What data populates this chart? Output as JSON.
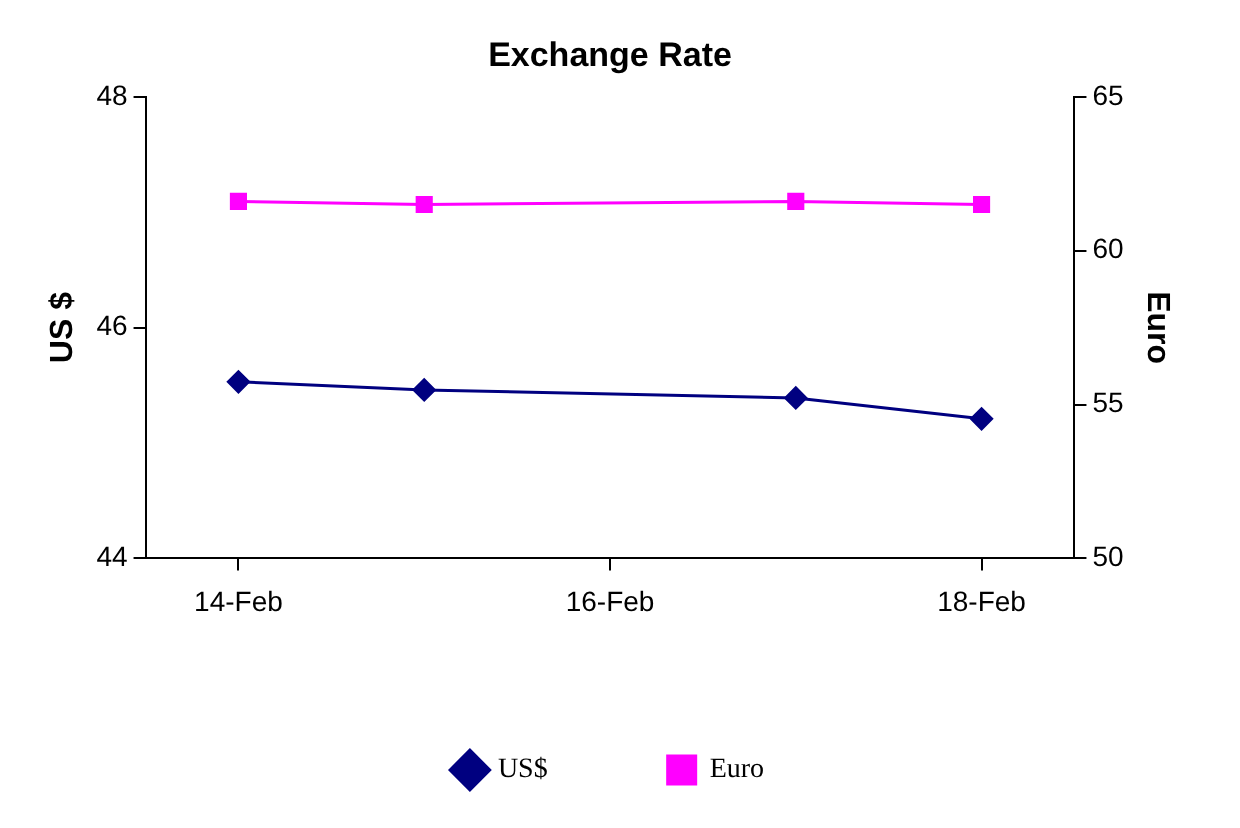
{
  "chart_data": {
    "type": "line",
    "title": "Exchange Rate",
    "ylabel": "US $",
    "y2label": "Euro",
    "x": [
      "--02-14",
      "--02-15",
      "--02-17",
      "--02-18"
    ],
    "xlim": [
      "--02-13T12:00",
      "--02-18T12:00"
    ],
    "xticks": [
      {
        "value": "--02-14",
        "label": "14-Feb"
      },
      {
        "value": "--02-16",
        "label": "16-Feb"
      },
      {
        "value": "--02-18",
        "label": "18-Feb"
      }
    ],
    "ylim": [
      44,
      48
    ],
    "yticks": [
      44,
      46,
      48
    ],
    "y2lim": [
      50,
      65
    ],
    "y2ticks": [
      50,
      55,
      60,
      65
    ],
    "series": [
      {
        "name": "US$",
        "color": "#000080",
        "values": [
          45.53,
          45.46,
          45.39,
          45.21
        ],
        "marker": "diamond"
      },
      {
        "name": "Euro",
        "color": "#ff00ff",
        "values": [
          61.6,
          61.5,
          61.6,
          61.5
        ],
        "marker": "square",
        "axis": "y2"
      }
    ],
    "grid": false,
    "legend": "bottom",
    "line_style": "solid"
  }
}
